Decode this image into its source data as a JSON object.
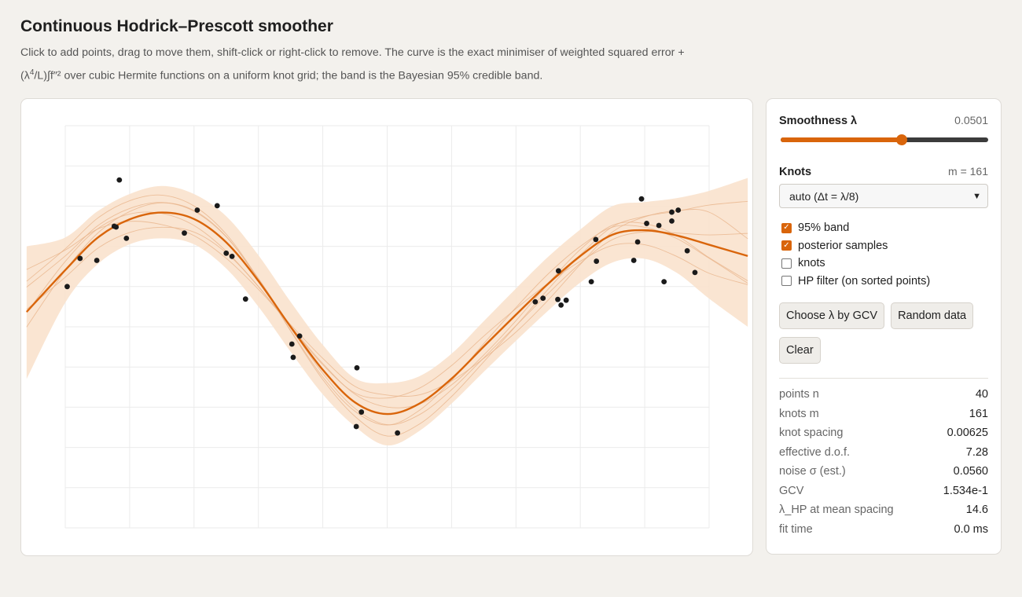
{
  "header": {
    "title": "Continuous Hodrick–Prescott smoother",
    "desc_line1": "Click to add points, drag to move them, shift-click or right-click to remove. The curve is the exact minimiser of weighted squared error +",
    "desc_lambda_open": "(λ",
    "desc_exp": "4",
    "desc_line2_rest": "/L)∫f″² over cubic Hermite functions on a uniform knot grid; the band is the Bayesian 95% credible band."
  },
  "controls": {
    "smoothness_label": "Smoothness λ",
    "smoothness_value": "0.0501",
    "smoothness_slider_fraction": 0.585,
    "knots_label": "Knots",
    "knots_count": "m = 161",
    "knots_select_value": "auto (Δt = λ/8)",
    "checkboxes": [
      {
        "label": "95% band",
        "checked": true
      },
      {
        "label": "posterior samples",
        "checked": true
      },
      {
        "label": "knots",
        "checked": false
      },
      {
        "label": "HP filter (on sorted points)",
        "checked": false
      }
    ],
    "buttons": {
      "gcv": "Choose λ by GCV",
      "random": "Random data",
      "clear": "Clear"
    }
  },
  "stats": [
    {
      "key": "points n",
      "value": "40"
    },
    {
      "key": "knots m",
      "value": "161"
    },
    {
      "key": "knot spacing",
      "value": "0.00625"
    },
    {
      "key": "effective d.o.f.",
      "value": "7.28"
    },
    {
      "key": "noise σ (est.)",
      "value": "0.0560"
    },
    {
      "key": "GCV",
      "value": "1.534e-1"
    },
    {
      "key": "λ_HP at mean spacing",
      "value": "14.6"
    },
    {
      "key": "fit time",
      "value": "0.0 ms"
    }
  ],
  "colors": {
    "curve": "#d9650b",
    "band": "#f9e2cd",
    "sample": "#e9b48b",
    "point": "#1a1a1a",
    "grid": "#ebebeb"
  },
  "chart_data": {
    "type": "scatter",
    "grid": true,
    "xlim": [
      -0.06,
      1.06
    ],
    "ylim": [
      0,
      1
    ],
    "points": [
      [
        0.003,
        0.6
      ],
      [
        0.023,
        0.67
      ],
      [
        0.049,
        0.665
      ],
      [
        0.076,
        0.75
      ],
      [
        0.079,
        0.748
      ],
      [
        0.084,
        0.865
      ],
      [
        0.095,
        0.72
      ],
      [
        0.185,
        0.733
      ],
      [
        0.205,
        0.79
      ],
      [
        0.236,
        0.801
      ],
      [
        0.25,
        0.683
      ],
      [
        0.259,
        0.675
      ],
      [
        0.28,
        0.569
      ],
      [
        0.352,
        0.457
      ],
      [
        0.354,
        0.424
      ],
      [
        0.364,
        0.477
      ],
      [
        0.453,
        0.398
      ],
      [
        0.452,
        0.252
      ],
      [
        0.46,
        0.288
      ],
      [
        0.516,
        0.236
      ],
      [
        0.73,
        0.562
      ],
      [
        0.742,
        0.571
      ],
      [
        0.766,
        0.639
      ],
      [
        0.765,
        0.568
      ],
      [
        0.77,
        0.554
      ],
      [
        0.778,
        0.566
      ],
      [
        0.817,
        0.612
      ],
      [
        0.825,
        0.663
      ],
      [
        0.824,
        0.717
      ],
      [
        0.883,
        0.665
      ],
      [
        0.889,
        0.711
      ],
      [
        0.895,
        0.818
      ],
      [
        0.903,
        0.757
      ],
      [
        0.922,
        0.752
      ],
      [
        0.93,
        0.612
      ],
      [
        0.942,
        0.763
      ],
      [
        0.942,
        0.785
      ],
      [
        0.952,
        0.79
      ],
      [
        0.966,
        0.689
      ],
      [
        0.978,
        0.635
      ]
    ],
    "fit_x": [
      -0.06,
      0.0,
      0.05,
      0.1,
      0.15,
      0.2,
      0.25,
      0.3,
      0.35,
      0.4,
      0.45,
      0.5,
      0.55,
      0.6,
      0.65,
      0.7,
      0.75,
      0.8,
      0.85,
      0.9,
      0.95,
      1.0,
      1.06
    ],
    "fit_y": [
      0.537,
      0.641,
      0.721,
      0.767,
      0.784,
      0.768,
      0.71,
      0.614,
      0.5,
      0.393,
      0.312,
      0.283,
      0.309,
      0.371,
      0.451,
      0.53,
      0.607,
      0.676,
      0.729,
      0.74,
      0.727,
      0.704,
      0.676
    ],
    "band_lower": [
      0.37,
      0.56,
      0.655,
      0.705,
      0.72,
      0.705,
      0.645,
      0.55,
      0.438,
      0.332,
      0.252,
      0.205,
      0.241,
      0.309,
      0.388,
      0.465,
      0.54,
      0.61,
      0.66,
      0.669,
      0.634,
      0.57,
      0.5
    ],
    "band_upper": [
      0.7,
      0.722,
      0.787,
      0.83,
      0.85,
      0.83,
      0.775,
      0.678,
      0.562,
      0.455,
      0.372,
      0.36,
      0.377,
      0.433,
      0.514,
      0.595,
      0.674,
      0.742,
      0.8,
      0.81,
      0.82,
      0.838,
      0.87
    ]
  }
}
